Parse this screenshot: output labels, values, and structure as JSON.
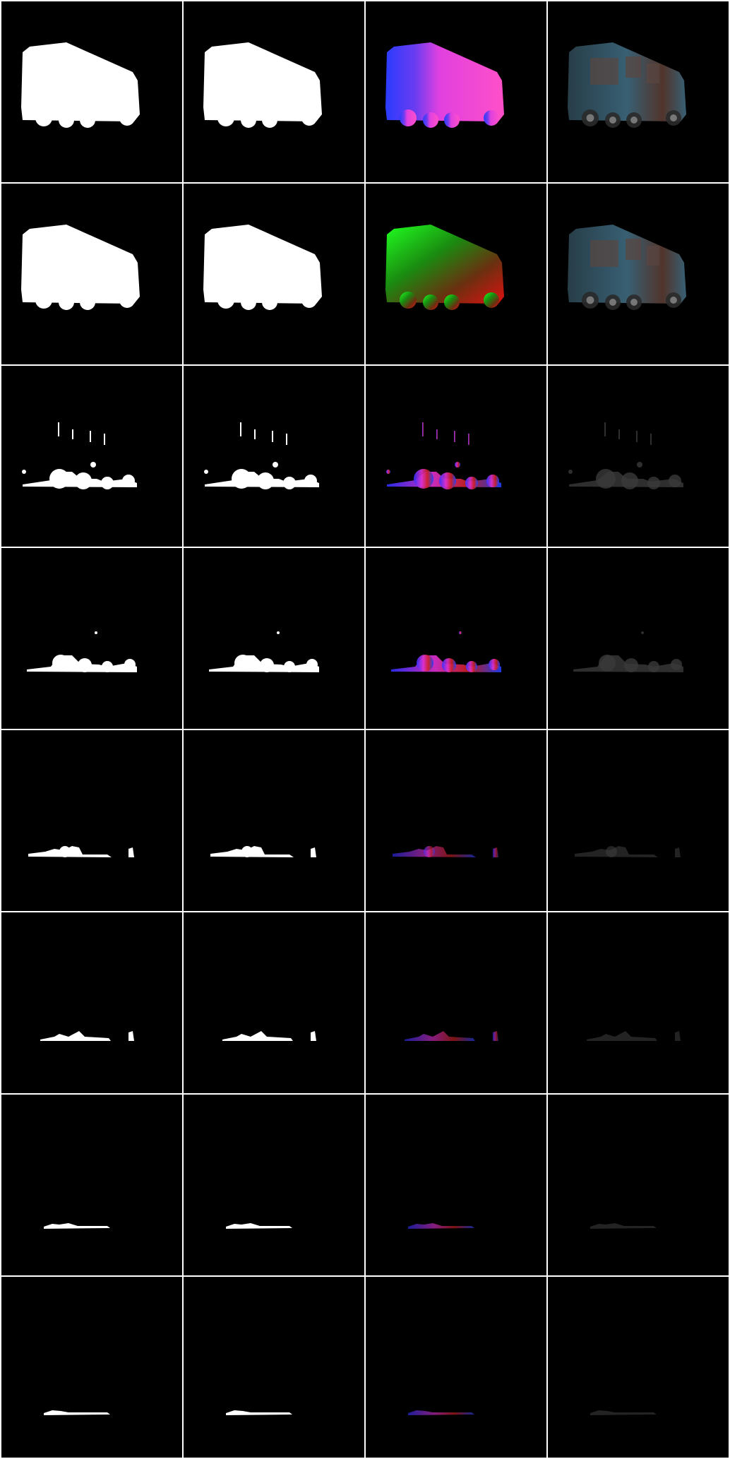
{
  "grid": {
    "rows": 8,
    "columns": 4
  }
}
